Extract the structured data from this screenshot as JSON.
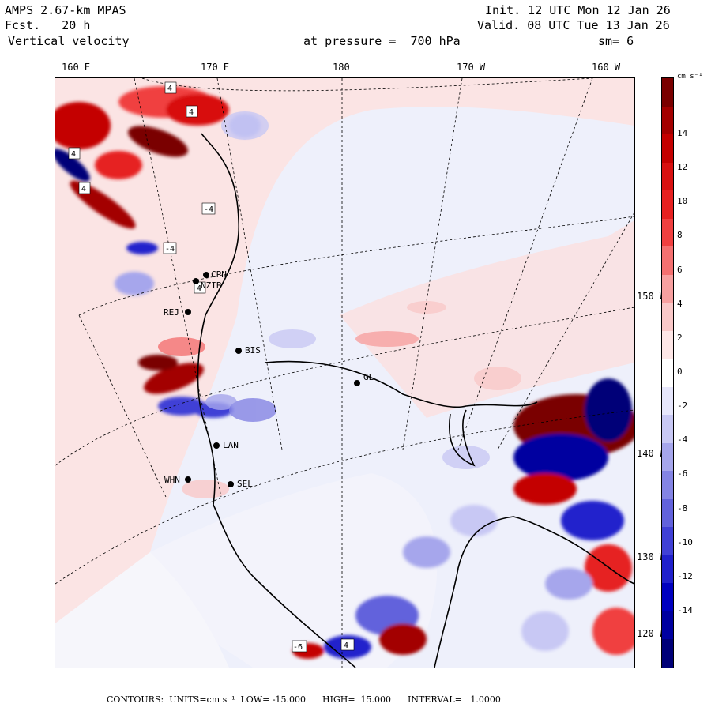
{
  "header": {
    "model": "AMPS 2.67-km MPAS",
    "fcst": "Fcst.   20 h",
    "field": "Vertical velocity",
    "init": "Init. 12 UTC Mon 12 Jan 26",
    "valid": "Valid. 08 UTC Tue 13 Jan 26",
    "level": "at pressure =  700 hPa",
    "smooth": "sm= 6"
  },
  "lon_ticks": [
    "160 E",
    "170 E",
    "180",
    "170 W",
    "160 W"
  ],
  "lat_labels_right": [
    "150 W",
    "140 W",
    "130 W",
    "120 W"
  ],
  "stations": [
    {
      "id": "CPN"
    },
    {
      "id": "NZIB"
    },
    {
      "id": "REJ"
    },
    {
      "id": "BIS"
    },
    {
      "id": "GL"
    },
    {
      "id": "LAN"
    },
    {
      "id": "WHN"
    },
    {
      "id": "SEL"
    }
  ],
  "contour_labels": [
    "4",
    "4",
    "4",
    "4",
    "4",
    "4",
    "-4",
    "-4",
    "-6"
  ],
  "colorbar": {
    "units": "cm s⁻¹",
    "labels": [
      "14",
      "12",
      "10",
      "8",
      "6",
      "4",
      "2",
      "0",
      "-2",
      "-4",
      "-6",
      "-8",
      "-10",
      "-12",
      "-14"
    ],
    "colors": [
      "#7a0000",
      "#a30000",
      "#c40000",
      "#d81010",
      "#e62020",
      "#f04040",
      "#f47070",
      "#f7a0a0",
      "#f9c8c8",
      "#fde6e6",
      "#ffffff",
      "#e6e6fb",
      "#c8c8f4",
      "#a6a6ec",
      "#8484e4",
      "#6262dc",
      "#4040d6",
      "#2020cc",
      "#0000c0",
      "#0000a0",
      "#000078"
    ]
  },
  "footer": {
    "text": "CONTOURS:  UNITS=cm s⁻¹  LOW= -15.000      HIGH=  15.000      INTERVAL=   1.0000"
  }
}
